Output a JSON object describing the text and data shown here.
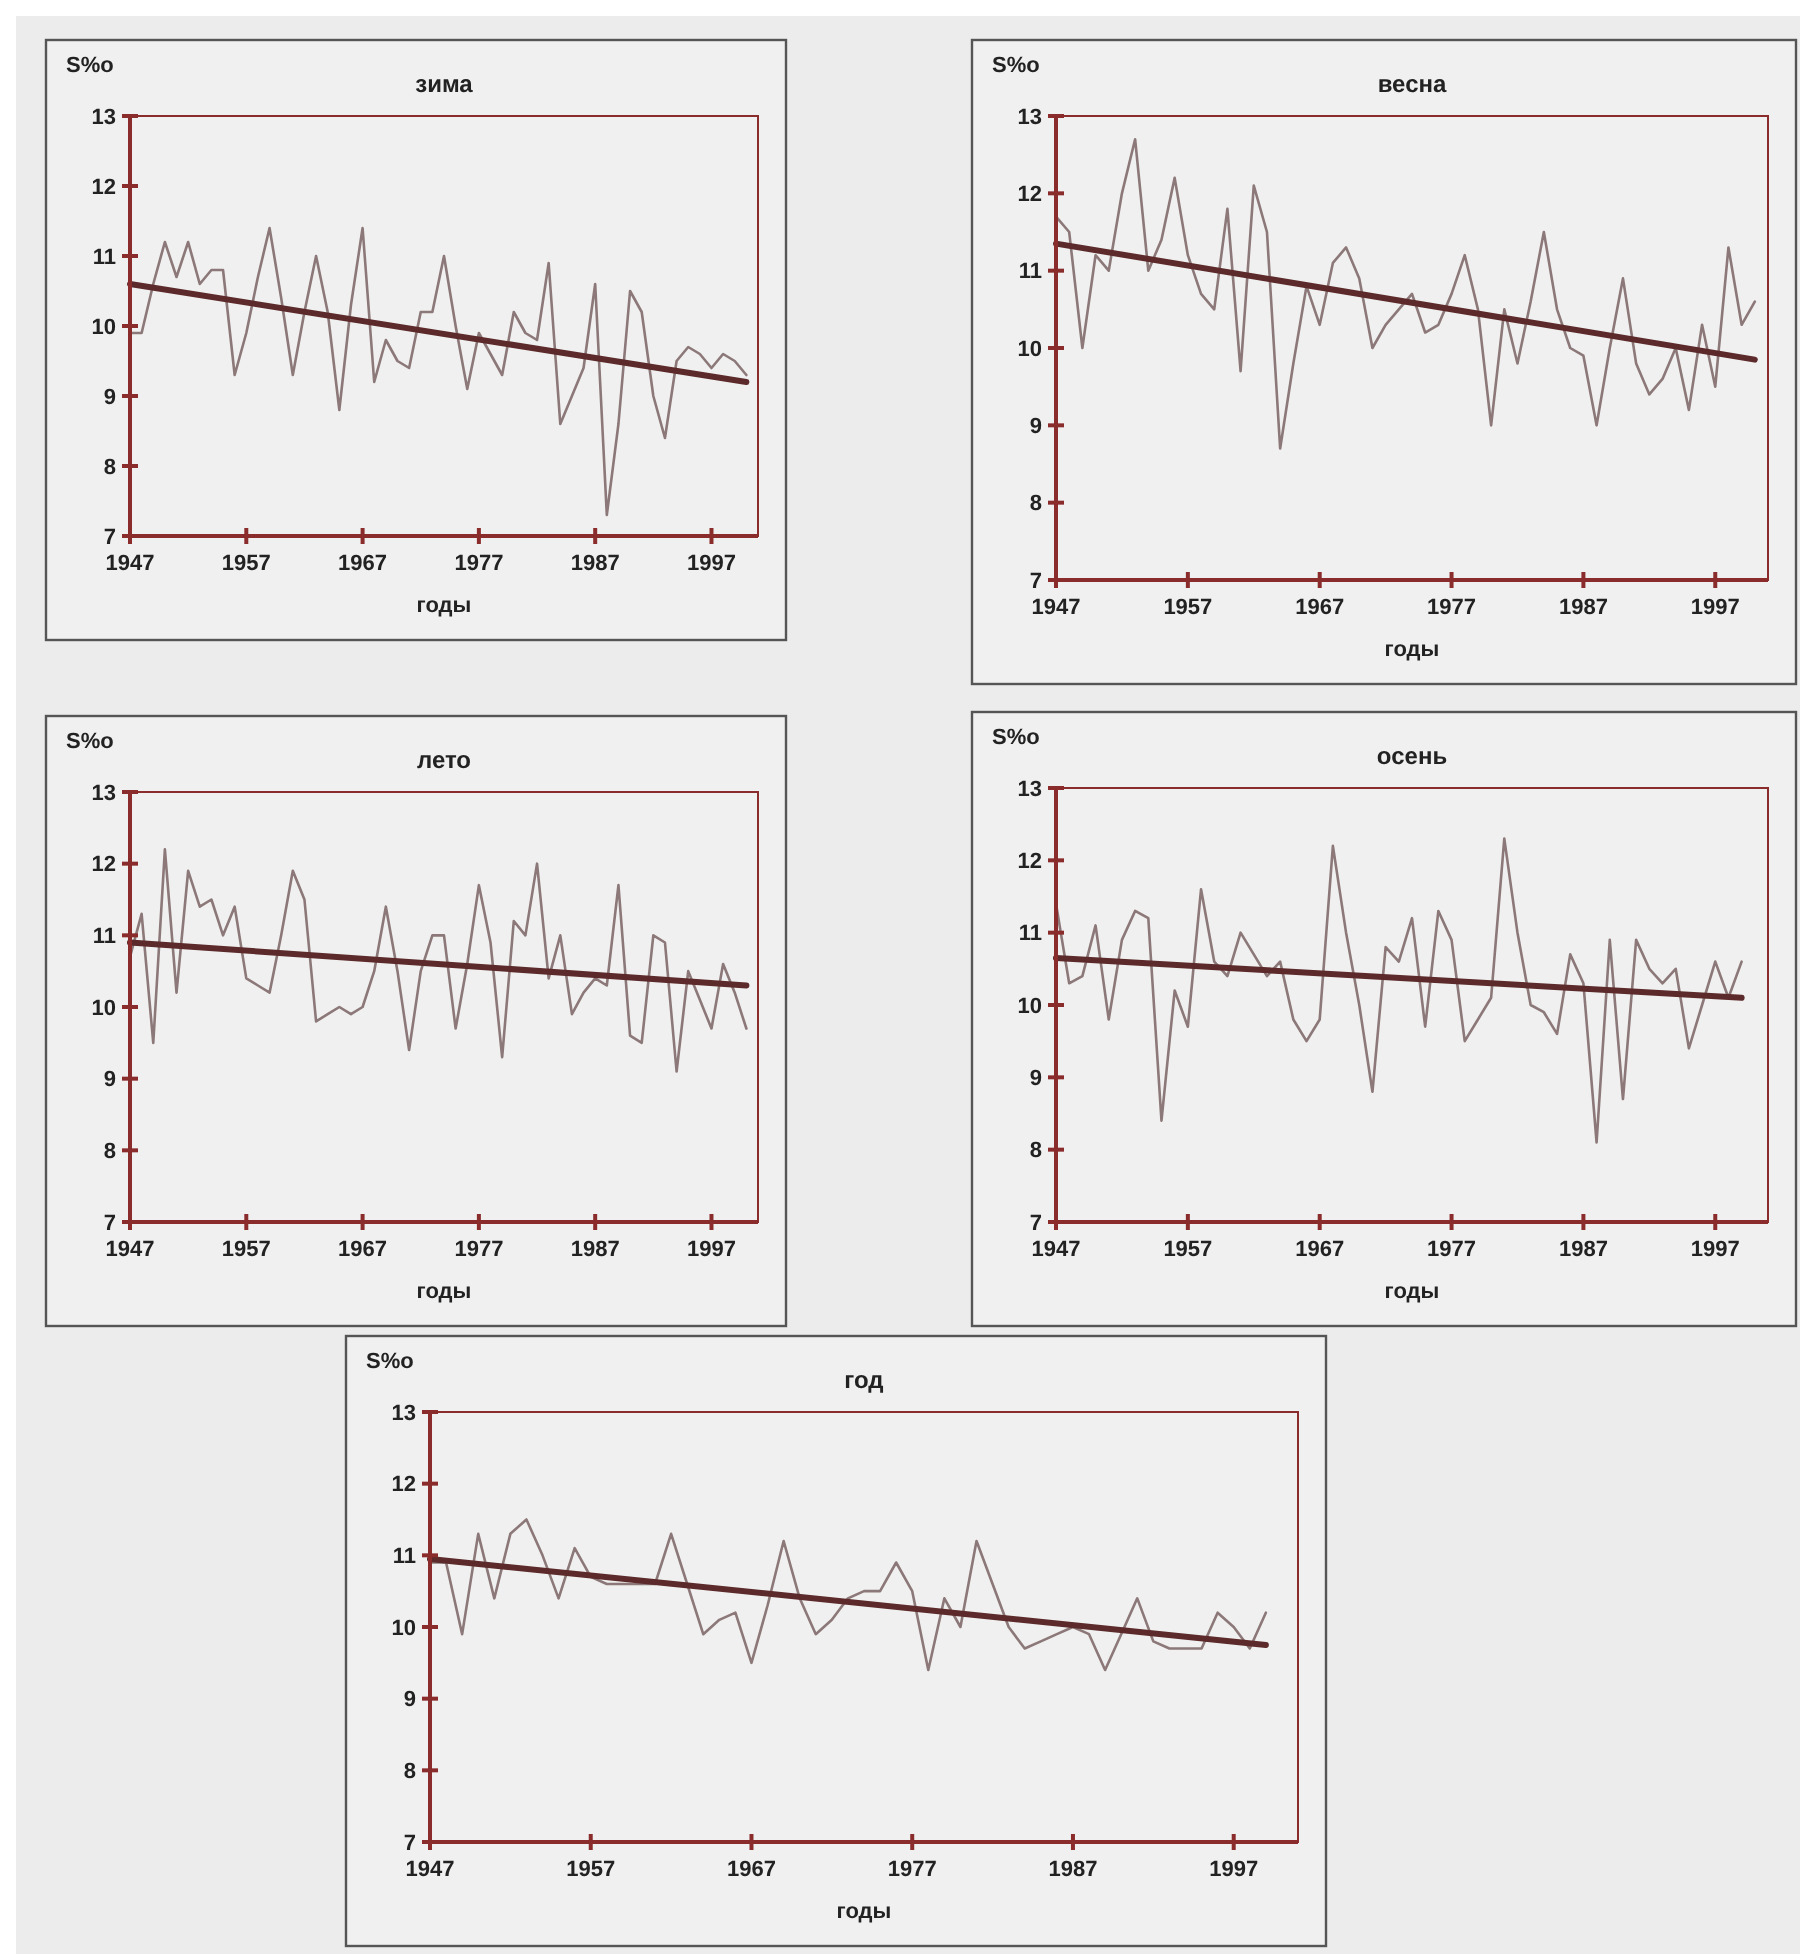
{
  "chart_data": [
    {
      "type": "line",
      "title": "зима",
      "xlabel": "годы",
      "ylabel": "S%o",
      "xlim": [
        1947,
        2001
      ],
      "xticks": [
        1947,
        1957,
        1967,
        1977,
        1987,
        1997
      ],
      "ylim": [
        7,
        13
      ],
      "yticks": [
        7,
        8,
        9,
        10,
        11,
        12,
        13
      ],
      "series": [
        {
          "color": "#8c7878",
          "x": [
            1947,
            1948,
            1949,
            1950,
            1951,
            1952,
            1953,
            1954,
            1955,
            1956,
            1957,
            1958,
            1959,
            1960,
            1961,
            1962,
            1963,
            1964,
            1965,
            1966,
            1967,
            1968,
            1969,
            1970,
            1971,
            1972,
            1973,
            1974,
            1975,
            1976,
            1977,
            1978,
            1979,
            1980,
            1981,
            1982,
            1983,
            1984,
            1985,
            1986,
            1987,
            1988,
            1989,
            1990,
            1991,
            1992,
            1993,
            1994,
            1995,
            1996,
            1997,
            1998,
            1999,
            2000
          ],
          "values": [
            9.9,
            9.9,
            10.6,
            11.2,
            10.7,
            11.2,
            10.6,
            10.8,
            10.8,
            9.3,
            9.9,
            10.7,
            11.4,
            10.4,
            9.3,
            10.2,
            11.0,
            10.2,
            8.8,
            10.3,
            11.4,
            9.2,
            9.8,
            9.5,
            9.4,
            10.2,
            10.2,
            11.0,
            10.0,
            9.1,
            9.9,
            9.6,
            9.3,
            10.2,
            9.9,
            9.8,
            10.9,
            8.6,
            9.0,
            9.4,
            10.6,
            7.3,
            8.6,
            10.5,
            10.2,
            9.0,
            8.4,
            9.5,
            9.7,
            9.6,
            9.4,
            9.6,
            9.5,
            9.3
          ]
        },
        {
          "type": "line",
          "color": "#5c2a2a",
          "x": [
            1947,
            2000
          ],
          "values": [
            10.6,
            9.2
          ]
        }
      ]
    },
    {
      "type": "line",
      "title": "весна",
      "xlabel": "годы",
      "ylabel": "S%o",
      "xlim": [
        1947,
        2001
      ],
      "xticks": [
        1947,
        1957,
        1967,
        1977,
        1987,
        1997
      ],
      "ylim": [
        7,
        13
      ],
      "yticks": [
        7,
        8,
        9,
        10,
        11,
        12,
        13
      ],
      "series": [
        {
          "color": "#8c7878",
          "x": [
            1947,
            1948,
            1949,
            1950,
            1951,
            1952,
            1953,
            1954,
            1955,
            1956,
            1957,
            1958,
            1959,
            1960,
            1961,
            1962,
            1963,
            1964,
            1965,
            1966,
            1967,
            1968,
            1969,
            1970,
            1971,
            1972,
            1973,
            1974,
            1975,
            1976,
            1977,
            1978,
            1979,
            1980,
            1981,
            1982,
            1983,
            1984,
            1985,
            1986,
            1987,
            1988,
            1989,
            1990,
            1991,
            1992,
            1993,
            1994,
            1995,
            1996,
            1997,
            1998,
            1999,
            2000
          ],
          "values": [
            11.7,
            11.5,
            10.0,
            11.2,
            11.0,
            12.0,
            12.7,
            11.0,
            11.4,
            12.2,
            11.2,
            10.7,
            10.5,
            11.8,
            9.7,
            12.1,
            11.5,
            8.7,
            9.8,
            10.8,
            10.3,
            11.1,
            11.3,
            10.9,
            10.0,
            10.3,
            10.5,
            10.7,
            10.2,
            10.3,
            10.7,
            11.2,
            10.5,
            9.0,
            10.5,
            9.8,
            10.6,
            11.5,
            10.5,
            10.0,
            9.9,
            9.0,
            10.0,
            10.9,
            9.8,
            9.4,
            9.6,
            10.0,
            9.2,
            10.3,
            9.5,
            11.3,
            10.3,
            10.6
          ]
        },
        {
          "type": "line",
          "color": "#5c2a2a",
          "x": [
            1947,
            2000
          ],
          "values": [
            11.35,
            9.85
          ]
        }
      ]
    },
    {
      "type": "line",
      "title": "лето",
      "xlabel": "годы",
      "ylabel": "S%o",
      "xlim": [
        1947,
        2001
      ],
      "xticks": [
        1947,
        1957,
        1967,
        1977,
        1987,
        1997
      ],
      "ylim": [
        7,
        13
      ],
      "yticks": [
        7,
        8,
        9,
        10,
        11,
        12,
        13
      ],
      "series": [
        {
          "color": "#8c7878",
          "x": [
            1947,
            1948,
            1949,
            1950,
            1951,
            1952,
            1953,
            1954,
            1955,
            1956,
            1957,
            1958,
            1959,
            1960,
            1961,
            1962,
            1963,
            1964,
            1965,
            1966,
            1967,
            1968,
            1969,
            1970,
            1971,
            1972,
            1973,
            1974,
            1975,
            1976,
            1977,
            1978,
            1979,
            1980,
            1981,
            1982,
            1983,
            1984,
            1985,
            1986,
            1987,
            1988,
            1989,
            1990,
            1991,
            1992,
            1993,
            1994,
            1995,
            1996,
            1997,
            1998,
            1999,
            2000
          ],
          "values": [
            10.7,
            11.3,
            9.5,
            12.2,
            10.2,
            11.9,
            11.4,
            11.5,
            11.0,
            11.4,
            10.4,
            10.3,
            10.2,
            11.0,
            11.9,
            11.5,
            9.8,
            9.9,
            10.0,
            9.9,
            10.0,
            10.5,
            11.4,
            10.5,
            9.4,
            10.5,
            11.0,
            11.0,
            9.7,
            10.6,
            11.7,
            10.9,
            9.3,
            11.2,
            11.0,
            12.0,
            10.4,
            11.0,
            9.9,
            10.2,
            10.4,
            10.3,
            11.7,
            9.6,
            9.5,
            11.0,
            10.9,
            9.1,
            10.5,
            10.1,
            9.7,
            10.6,
            10.2,
            9.7
          ]
        },
        {
          "type": "line",
          "color": "#5c2a2a",
          "x": [
            1947,
            2000
          ],
          "values": [
            10.9,
            10.3
          ]
        }
      ]
    },
    {
      "type": "line",
      "title": "осень",
      "xlabel": "годы",
      "ylabel": "S%o",
      "xlim": [
        1947,
        2001
      ],
      "xticks": [
        1947,
        1957,
        1967,
        1977,
        1987,
        1997
      ],
      "ylim": [
        7,
        13
      ],
      "yticks": [
        7,
        8,
        9,
        10,
        11,
        12,
        13
      ],
      "series": [
        {
          "color": "#8c7878",
          "x": [
            1947,
            1948,
            1949,
            1950,
            1951,
            1952,
            1953,
            1954,
            1955,
            1956,
            1957,
            1958,
            1959,
            1960,
            1961,
            1962,
            1963,
            1964,
            1965,
            1966,
            1967,
            1968,
            1969,
            1970,
            1971,
            1972,
            1973,
            1974,
            1975,
            1976,
            1977,
            1978,
            1979,
            1980,
            1981,
            1982,
            1983,
            1984,
            1985,
            1986,
            1987,
            1988,
            1989,
            1990,
            1991,
            1992,
            1993,
            1994,
            1995,
            1996,
            1997,
            1998,
            1999
          ],
          "values": [
            11.4,
            10.3,
            10.4,
            11.1,
            9.8,
            10.9,
            11.3,
            11.2,
            8.4,
            10.2,
            9.7,
            11.6,
            10.6,
            10.4,
            11.0,
            10.7,
            10.4,
            10.6,
            9.8,
            9.5,
            9.8,
            12.2,
            11.0,
            10.0,
            8.8,
            10.8,
            10.6,
            11.2,
            9.7,
            11.3,
            10.9,
            9.5,
            9.8,
            10.1,
            12.3,
            11.0,
            10.0,
            9.9,
            9.6,
            10.7,
            10.3,
            8.1,
            10.9,
            8.7,
            10.9,
            10.5,
            10.3,
            10.5,
            9.4,
            10.0,
            10.6,
            10.1,
            10.6
          ]
        },
        {
          "type": "line",
          "color": "#5c2a2a",
          "x": [
            1947,
            1999
          ],
          "values": [
            10.65,
            10.1
          ]
        }
      ]
    },
    {
      "type": "line",
      "title": "год",
      "xlabel": "годы",
      "ylabel": "S%o",
      "xlim": [
        1947,
        2001
      ],
      "xticks": [
        1947,
        1957,
        1967,
        1977,
        1987,
        1997
      ],
      "ylim": [
        7,
        13
      ],
      "yticks": [
        7,
        8,
        9,
        10,
        11,
        12,
        13
      ],
      "series": [
        {
          "color": "#8c7878",
          "x": [
            1947,
            1948,
            1949,
            1950,
            1951,
            1952,
            1953,
            1954,
            1955,
            1956,
            1957,
            1958,
            1959,
            1960,
            1961,
            1962,
            1963,
            1964,
            1965,
            1966,
            1967,
            1968,
            1969,
            1970,
            1971,
            1972,
            1973,
            1974,
            1975,
            1976,
            1977,
            1978,
            1979,
            1980,
            1981,
            1982,
            1983,
            1984,
            1985,
            1986,
            1987,
            1988,
            1989,
            1990,
            1991,
            1992,
            1993,
            1994,
            1995,
            1996,
            1997,
            1998,
            1999
          ],
          "values": [
            10.9,
            10.9,
            9.9,
            11.3,
            10.4,
            11.3,
            11.5,
            11.0,
            10.4,
            11.1,
            10.7,
            10.6,
            10.6,
            10.6,
            10.6,
            11.3,
            10.6,
            9.9,
            10.1,
            10.2,
            9.5,
            10.3,
            11.2,
            10.4,
            9.9,
            10.1,
            10.4,
            10.5,
            10.5,
            10.9,
            10.5,
            9.4,
            10.4,
            10.0,
            11.2,
            10.6,
            10.0,
            9.7,
            9.8,
            9.9,
            10.0,
            9.9,
            9.4,
            9.9,
            10.4,
            9.8,
            9.7,
            9.7,
            9.7,
            10.2,
            10.0,
            9.7,
            10.2
          ]
        },
        {
          "type": "line",
          "color": "#5c2a2a",
          "x": [
            1947,
            1999
          ],
          "values": [
            10.95,
            9.75
          ]
        }
      ]
    }
  ]
}
